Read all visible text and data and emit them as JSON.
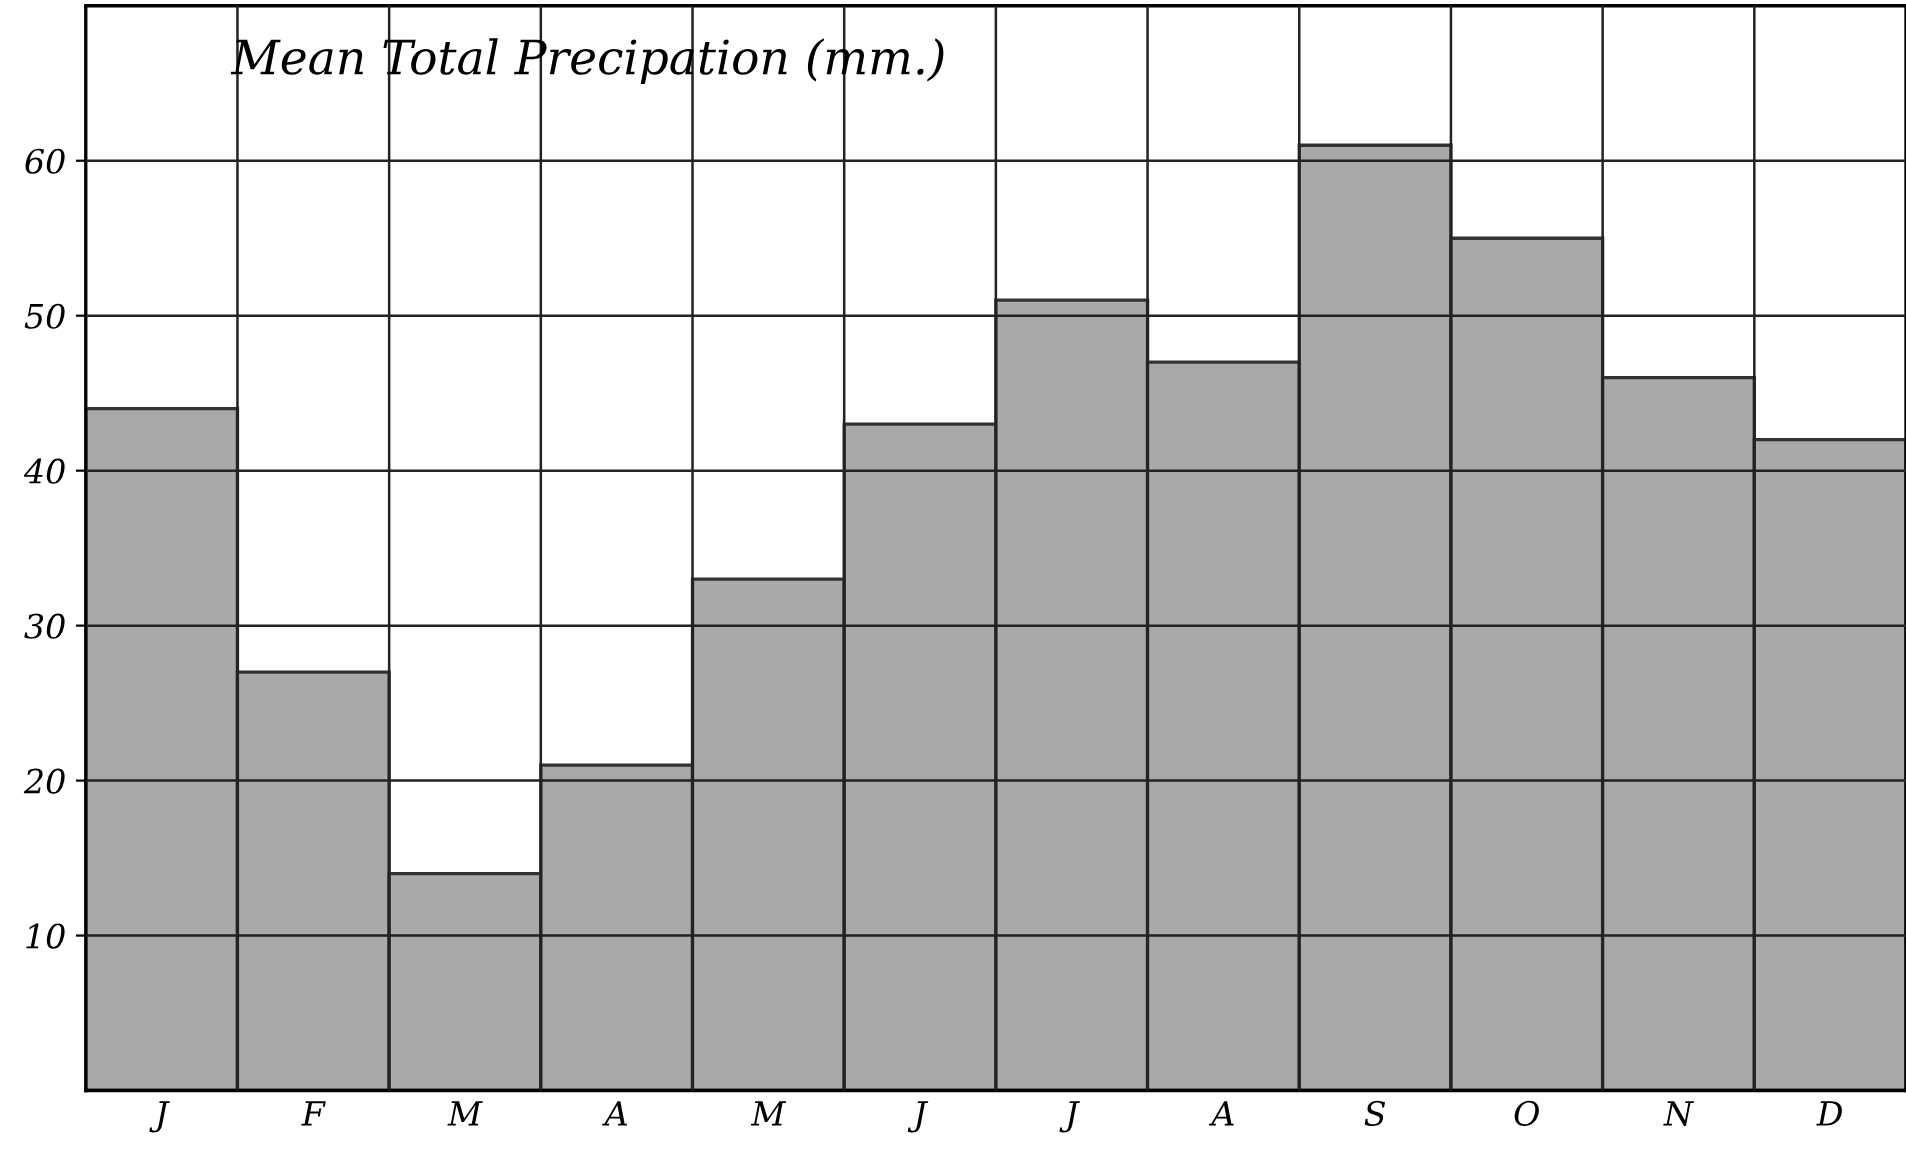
{
  "chart_data": {
    "type": "bar",
    "title": "Mean Total Precipation (mm.)",
    "categories": [
      "J",
      "F",
      "M",
      "A",
      "M",
      "J",
      "J",
      "A",
      "S",
      "O",
      "N",
      "D"
    ],
    "values": [
      44,
      27,
      14,
      21,
      33,
      43,
      51,
      47,
      61,
      55,
      46,
      42
    ],
    "color": "#a9a9a9",
    "ylim": [
      0,
      70
    ],
    "yticks": [
      10,
      20,
      30,
      40,
      50,
      60
    ],
    "grid": true
  }
}
